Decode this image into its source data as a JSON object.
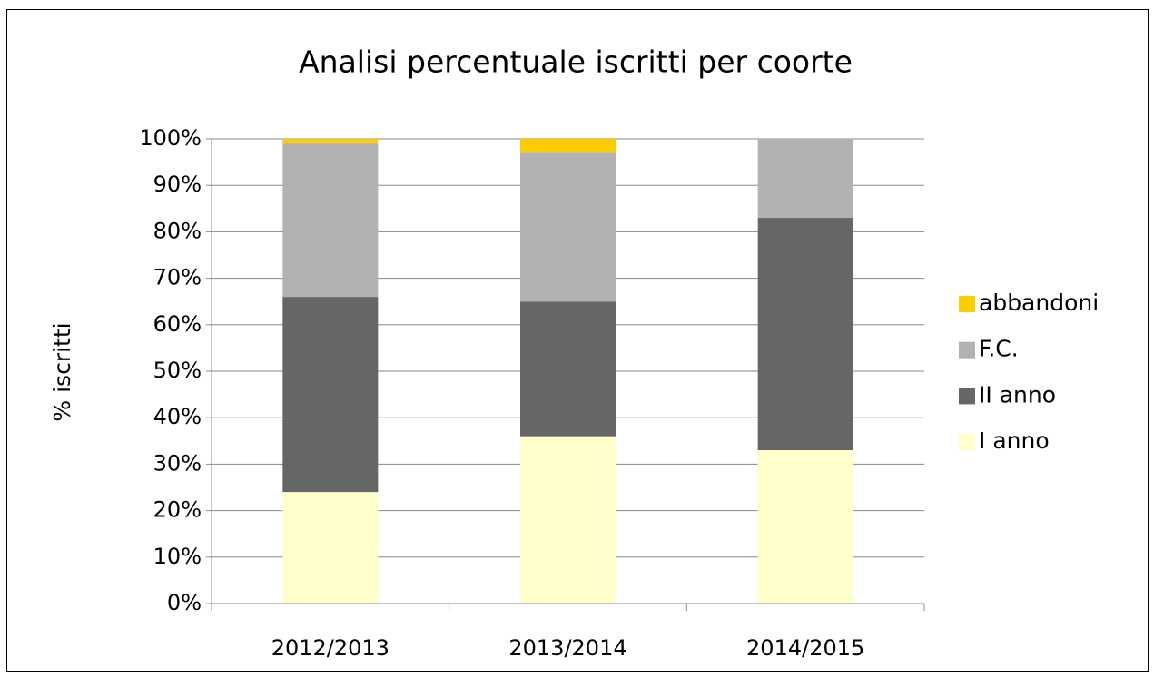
{
  "chart_data": {
    "type": "bar",
    "stacked": true,
    "title": "Analisi percentuale iscritti per coorte",
    "y_label": "% iscritti",
    "categories": [
      "2012/2013",
      "2013/2014",
      "2014/2015"
    ],
    "series": [
      {
        "name": "I anno",
        "color": "#ffffcc",
        "values": [
          24,
          36,
          33
        ]
      },
      {
        "name": "II anno",
        "color": "#666666",
        "values": [
          42,
          29,
          50
        ]
      },
      {
        "name": "F.C.",
        "color": "#b2b2b2",
        "values": [
          33,
          32,
          17
        ]
      },
      {
        "name": "abbandoni",
        "color": "#ffcc00",
        "values": [
          1,
          3,
          0
        ]
      }
    ],
    "ylim": [
      0,
      100
    ],
    "yticks": [
      {
        "value": 0,
        "label": "0%"
      },
      {
        "value": 10,
        "label": "10%"
      },
      {
        "value": 20,
        "label": "20%"
      },
      {
        "value": 30,
        "label": "30%"
      },
      {
        "value": 40,
        "label": "40%"
      },
      {
        "value": 50,
        "label": "50%"
      },
      {
        "value": 60,
        "label": "60%"
      },
      {
        "value": 70,
        "label": "70%"
      },
      {
        "value": 80,
        "label": "80%"
      },
      {
        "value": 90,
        "label": "90%"
      },
      {
        "value": 100,
        "label": "100%"
      }
    ],
    "grid": true,
    "legend": "right"
  }
}
